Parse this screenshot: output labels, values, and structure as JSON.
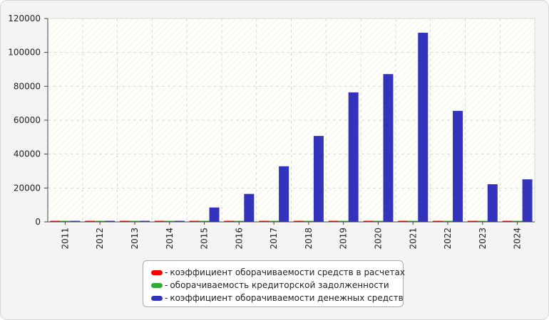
{
  "chart_data": {
    "type": "bar",
    "categories": [
      "2011",
      "2012",
      "2013",
      "2014",
      "2015",
      "2016",
      "2017",
      "2018",
      "2019",
      "2020",
      "2021",
      "2022",
      "2023",
      "2024"
    ],
    "series": [
      {
        "name": "коэффициент оборачиваемости средств в расчетах",
        "color": "#ff0000",
        "values": [
          120,
          120,
          120,
          120,
          120,
          120,
          120,
          120,
          120,
          120,
          120,
          120,
          120,
          120
        ]
      },
      {
        "name": "оборачиваемость кредиторской задолженности",
        "color": "#33aa33",
        "values": [
          90,
          90,
          90,
          90,
          90,
          90,
          90,
          90,
          90,
          90,
          90,
          90,
          90,
          90
        ]
      },
      {
        "name": "коэффициент оборачиваемости денежных средств",
        "color": "#3333bb",
        "values": [
          60,
          90,
          150,
          200,
          8500,
          16500,
          32800,
          50700,
          76400,
          87200,
          111600,
          65500,
          22200,
          25100
        ]
      }
    ],
    "ylim": [
      0,
      120000
    ],
    "yticks": [
      0,
      20000,
      40000,
      60000,
      80000,
      100000,
      120000
    ],
    "grid": true,
    "legend": {
      "position": "bottom",
      "prefix": "-"
    }
  }
}
